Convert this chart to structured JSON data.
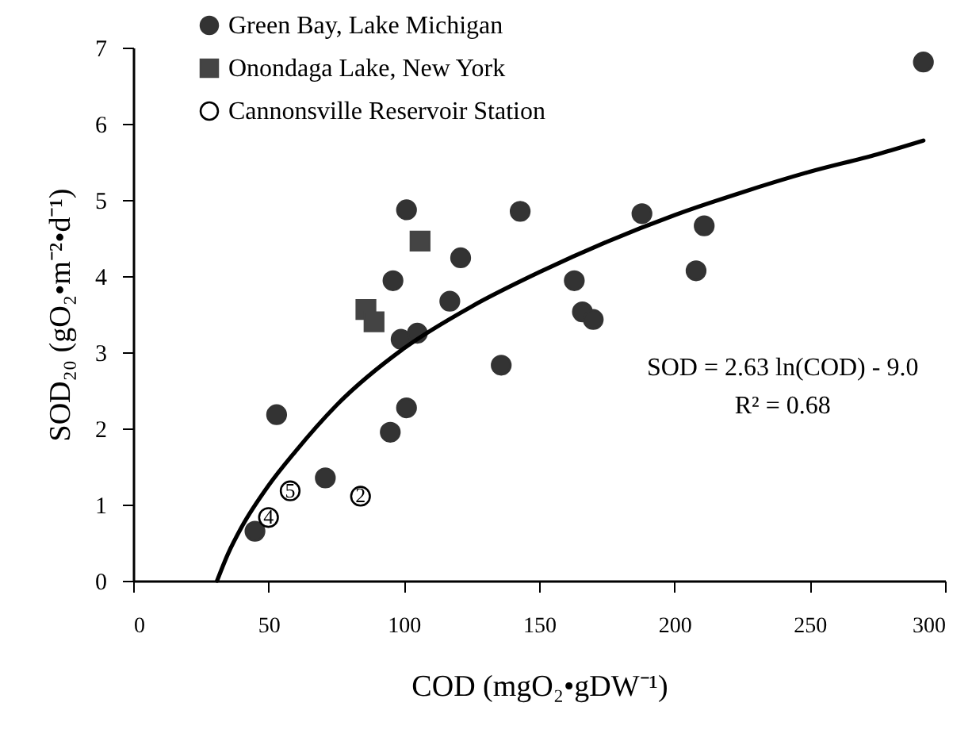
{
  "chart_data": {
    "type": "scatter",
    "xlabel": "COD (mgO₂•gDW⁻¹)",
    "ylabel": "SOD₂₀ (gO₂•m⁻²•d⁻¹)",
    "xlim": [
      0,
      300
    ],
    "xticks": [
      0,
      50,
      100,
      150,
      200,
      250,
      300
    ],
    "ylim": [
      0,
      7
    ],
    "yticks": [
      0,
      1,
      2,
      3,
      4,
      5,
      6,
      7
    ],
    "grid": false,
    "legend": "top left",
    "series": [
      {
        "name": "Green Bay, Lake Michigan",
        "color": "#333333",
        "marker": "circle",
        "x": [
          292,
          101,
          143,
          96,
          121,
          117,
          99,
          105,
          136,
          163,
          166,
          170,
          188,
          211,
          208,
          53,
          95,
          101,
          71,
          45
        ],
        "values": [
          6.81,
          4.87,
          4.85,
          3.94,
          4.24,
          3.67,
          3.17,
          3.25,
          2.83,
          3.94,
          3.53,
          3.43,
          4.82,
          4.66,
          4.07,
          2.18,
          1.95,
          2.27,
          1.35,
          0.65
        ]
      },
      {
        "name": "Onondaga Lake, New York",
        "color": "#444444",
        "marker": "square",
        "x": [
          86,
          89,
          106
        ],
        "values": [
          3.56,
          3.4,
          4.46
        ]
      },
      {
        "name": "Cannonsville Reservoir Station",
        "color": "#000000",
        "marker": "circle",
        "x": [
          58,
          50,
          84
        ],
        "values": [
          1.18,
          0.83,
          1.11
        ]
      },
      {
        "type": "line",
        "color": "#000000",
        "x": [
          31,
          35,
          40,
          50,
          60,
          75,
          100,
          125,
          150,
          175,
          200,
          225,
          250,
          275,
          292
        ],
        "values": [
          0,
          0.35,
          0.7,
          1.25,
          1.7,
          2.3,
          3.05,
          3.6,
          4.05,
          4.45,
          4.8,
          5.1,
          5.37,
          5.6,
          5.78
        ]
      }
    ],
    "annotations": [
      {
        "text": "5",
        "x": 58,
        "y": 1.18
      },
      {
        "text": "4",
        "x": 50,
        "y": 0.83
      },
      {
        "text": "2",
        "x": 84,
        "y": 1.11
      },
      "SOD = 2.63 ln(COD) - 9.0",
      "R² = 0.68"
    ]
  }
}
